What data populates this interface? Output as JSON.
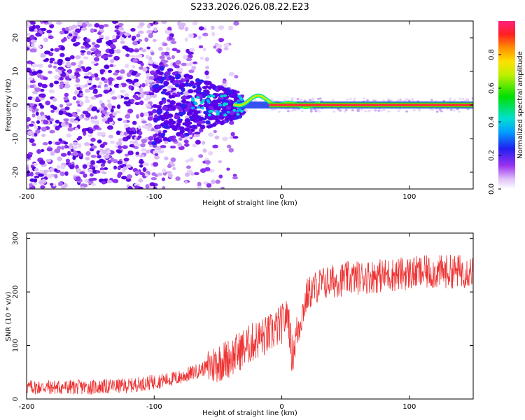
{
  "title": "S233.2026.026.08.22.E23",
  "chart_data": [
    {
      "type": "heatmap",
      "title": "S233.2026.026.08.22.E23",
      "xlabel": "Height of straight line (km)",
      "ylabel": "Frequency (Hz)",
      "xlim": [
        -200,
        150
      ],
      "ylim": [
        -25,
        25
      ],
      "xticks": [
        -200,
        -100,
        0,
        100
      ],
      "yticks": [
        -20,
        -10,
        0,
        10,
        20
      ],
      "colorbar": {
        "label": "Normalized spectral amplitude",
        "range": [
          0,
          1
        ],
        "ticks": [
          0.0,
          0.2,
          0.4,
          0.6,
          0.8
        ]
      },
      "description_points": {
        "noise_region_x": [
          -200,
          -100
        ],
        "signal_onset_x": -35,
        "carrier_frequency_hz": 0
      }
    },
    {
      "type": "line",
      "xlabel": "Height of straight line (km)",
      "ylabel": "SNR (10 * v/v)",
      "xlim": [
        -200,
        150
      ],
      "ylim": [
        0,
        310
      ],
      "xticks": [
        -200,
        -100,
        0,
        100
      ],
      "yticks": [
        0,
        100,
        200,
        300
      ],
      "series": [
        {
          "name": "SNR",
          "color": "#ee3333",
          "x": [
            -200,
            -150,
            -120,
            -100,
            -80,
            -60,
            -40,
            -30,
            -20,
            -10,
            0,
            5,
            8,
            12,
            20,
            30,
            50,
            100,
            150
          ],
          "values": [
            22,
            22,
            25,
            32,
            40,
            58,
            78,
            95,
            110,
            120,
            140,
            160,
            80,
            125,
            195,
            215,
            225,
            235,
            240
          ]
        }
      ]
    }
  ]
}
